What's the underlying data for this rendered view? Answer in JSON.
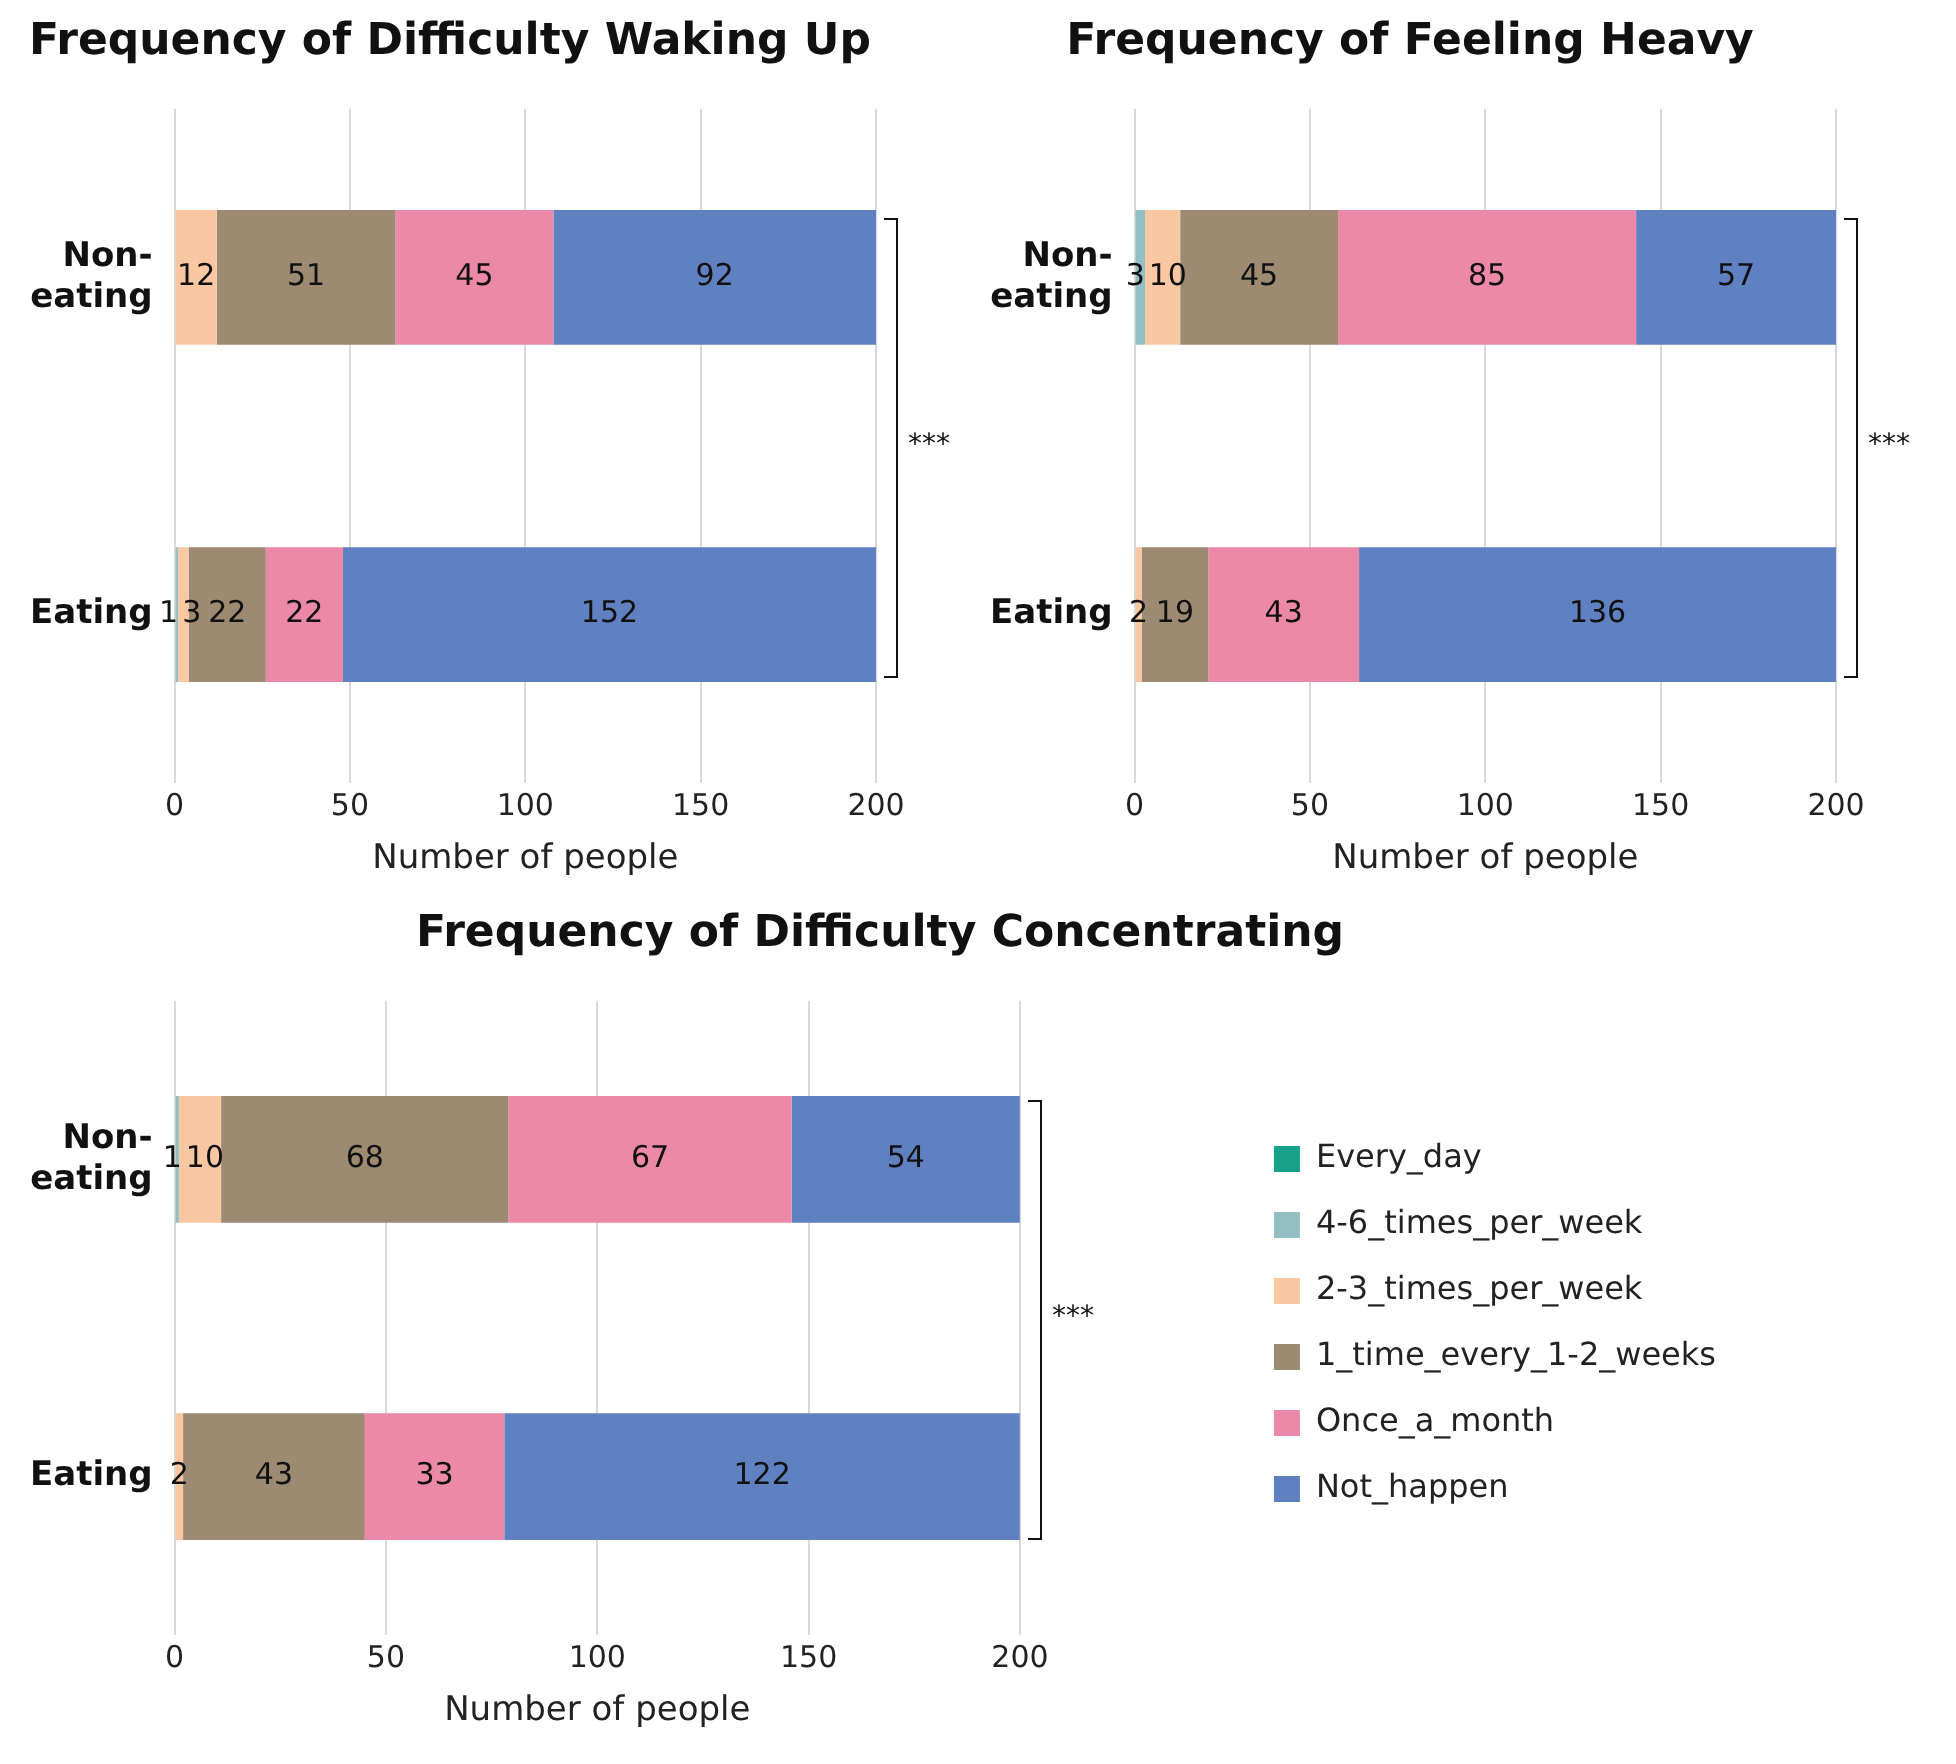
{
  "chart_data": [
    {
      "type": "bar",
      "orientation": "horizontal",
      "stacked": true,
      "title": "Frequency of Difficulty Waking Up",
      "xlabel": "Number of people",
      "categories": [
        "Non-eating",
        "Eating"
      ],
      "xlim": [
        0,
        200
      ],
      "xticks": [
        0,
        50,
        100,
        150,
        200
      ],
      "grid": "x",
      "legend": false,
      "annotations": [
        "***"
      ],
      "series": [
        {
          "color": "#17a08a",
          "values": [
            0,
            0
          ],
          "value_labels": [
            null,
            null
          ]
        },
        {
          "color": "#93bfc2",
          "values": [
            0,
            1
          ],
          "value_labels": [
            null,
            "1"
          ]
        },
        {
          "color": "#f9c8a2",
          "values": [
            12,
            3
          ],
          "value_labels": [
            "12",
            "3"
          ]
        },
        {
          "color": "#9c8a72",
          "values": [
            51,
            22
          ],
          "value_labels": [
            "51",
            "22"
          ]
        },
        {
          "color": "#ec89a8",
          "values": [
            45,
            22
          ],
          "value_labels": [
            "45",
            "22"
          ]
        },
        {
          "color": "#5f80c1",
          "values": [
            92,
            152
          ],
          "value_labels": [
            "92",
            "152"
          ]
        }
      ]
    },
    {
      "type": "bar",
      "orientation": "horizontal",
      "stacked": true,
      "title": "Frequency of Feeling Heavy",
      "xlabel": "Number of people",
      "categories": [
        "Non-eating",
        "Eating"
      ],
      "xlim": [
        0,
        200
      ],
      "xticks": [
        0,
        50,
        100,
        150,
        200
      ],
      "grid": "x",
      "legend": false,
      "annotations": [
        "***"
      ],
      "series": [
        {
          "color": "#17a08a",
          "values": [
            0,
            0
          ],
          "value_labels": [
            null,
            null
          ]
        },
        {
          "color": "#93bfc2",
          "values": [
            3,
            0
          ],
          "value_labels": [
            "3",
            null
          ]
        },
        {
          "color": "#f9c8a2",
          "values": [
            10,
            2
          ],
          "value_labels": [
            "10",
            "2"
          ]
        },
        {
          "color": "#9c8a72",
          "values": [
            45,
            19
          ],
          "value_labels": [
            "45",
            "19"
          ]
        },
        {
          "color": "#ec89a8",
          "values": [
            85,
            43
          ],
          "value_labels": [
            "85",
            "43"
          ]
        },
        {
          "color": "#5f80c1",
          "values": [
            57,
            136
          ],
          "value_labels": [
            "57",
            "136"
          ]
        }
      ]
    },
    {
      "type": "bar",
      "orientation": "horizontal",
      "stacked": true,
      "title": "Frequency of Difficulty Concentrating",
      "xlabel": "Number of people",
      "categories": [
        "Non-eating",
        "Eating"
      ],
      "xlim": [
        0,
        200
      ],
      "xticks": [
        0,
        50,
        100,
        150,
        200
      ],
      "grid": "x",
      "legend": "right",
      "annotations": [
        "***"
      ],
      "series": [
        {
          "name": "Every_day",
          "color": "#17a08a",
          "values": [
            0,
            0
          ],
          "value_labels": [
            null,
            null
          ]
        },
        {
          "name": "4-6_times_per_week",
          "color": "#93bfc2",
          "values": [
            1,
            0
          ],
          "value_labels": [
            "1",
            null
          ]
        },
        {
          "name": "2-3_times_per_week",
          "color": "#f9c8a2",
          "values": [
            10,
            2
          ],
          "value_labels": [
            "10",
            "2"
          ]
        },
        {
          "name": "1_time_every_1-2_weeks",
          "color": "#9c8a72",
          "values": [
            68,
            43
          ],
          "value_labels": [
            "68",
            "43"
          ]
        },
        {
          "name": "Once_a_month",
          "color": "#ec89a8",
          "values": [
            67,
            33
          ],
          "value_labels": [
            "67",
            "33"
          ]
        },
        {
          "name": "Not_happen",
          "color": "#5f80c1",
          "values": [
            54,
            122
          ],
          "value_labels": [
            "54",
            "122"
          ]
        }
      ]
    }
  ]
}
